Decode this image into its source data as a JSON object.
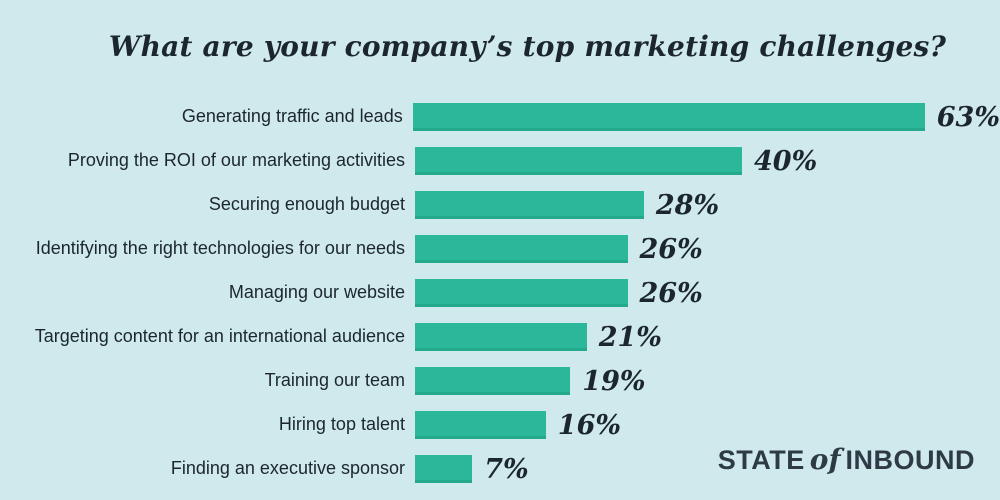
{
  "colors": {
    "background": "#cfe9ed",
    "bar": "#2ab79a",
    "bar_edge": "#25a98d",
    "text": "#1c262e",
    "logo": "#2e3b46"
  },
  "logo": {
    "part1": "STATE",
    "part2": "of",
    "part3": "INBOUND"
  },
  "chart_data": {
    "type": "bar",
    "orientation": "horizontal",
    "title": "What are your company’s top marketing challenges?",
    "categories": [
      "Generating traffic and leads",
      "Proving the ROI of our marketing activities",
      "Securing enough budget",
      "Identifying the right technologies for our needs",
      "Managing our website",
      "Targeting content for an international audience",
      "Training our team",
      "Hiring top talent",
      "Finding an executive sponsor"
    ],
    "values": [
      63,
      40,
      28,
      26,
      26,
      21,
      19,
      16,
      7
    ],
    "value_labels": [
      "63%",
      "40%",
      "28%",
      "26%",
      "26%",
      "21%",
      "19%",
      "16%",
      "7%"
    ],
    "unit": "%",
    "xlim": [
      0,
      63
    ],
    "grid": false,
    "legend": false
  }
}
